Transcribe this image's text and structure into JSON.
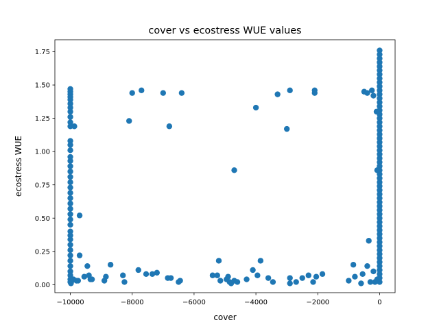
{
  "chart_data": {
    "type": "scatter",
    "title": "cover vs ecostress WUE values",
    "xlabel": "cover",
    "ylabel": "ecostress WUE",
    "xlim": [
      -10500,
      500
    ],
    "ylim": [
      -0.06,
      1.84
    ],
    "xticks": [
      -10000,
      -8000,
      -6000,
      -4000,
      -2000,
      0
    ],
    "xtick_labels": [
      "−10000",
      "−8000",
      "−6000",
      "−4000",
      "−2000",
      "0"
    ],
    "yticks": [
      0.0,
      0.25,
      0.5,
      0.75,
      1.0,
      1.25,
      1.5,
      1.75
    ],
    "ytick_labels": [
      "0.00",
      "0.25",
      "0.50",
      "0.75",
      "1.00",
      "1.25",
      "1.50",
      "1.75"
    ],
    "grid": false,
    "marker_color": "#1f77b4",
    "series": [
      {
        "points": [
          [
            -10000,
            1.47
          ],
          [
            -10000,
            1.45
          ],
          [
            -10000,
            1.43
          ],
          [
            -10000,
            1.41
          ],
          [
            -10000,
            1.39
          ],
          [
            -10000,
            1.36
          ],
          [
            -10000,
            1.33
          ],
          [
            -10000,
            1.3
          ],
          [
            -10000,
            1.26
          ],
          [
            -10000,
            1.22
          ],
          [
            -10000,
            1.19
          ],
          [
            -10000,
            1.08
          ],
          [
            -10000,
            1.05
          ],
          [
            -10000,
            1.01
          ],
          [
            -10000,
            0.96
          ],
          [
            -10000,
            0.93
          ],
          [
            -10000,
            0.89
          ],
          [
            -10000,
            0.85
          ],
          [
            -10000,
            0.81
          ],
          [
            -10000,
            0.77
          ],
          [
            -10000,
            0.73
          ],
          [
            -10000,
            0.69
          ],
          [
            -10000,
            0.65
          ],
          [
            -10000,
            0.61
          ],
          [
            -10000,
            0.57
          ],
          [
            -10000,
            0.53
          ],
          [
            -10000,
            0.49
          ],
          [
            -10000,
            0.45
          ],
          [
            -10000,
            0.4
          ],
          [
            -10000,
            0.37
          ],
          [
            -10000,
            0.34
          ],
          [
            -10000,
            0.3
          ],
          [
            -10000,
            0.26
          ],
          [
            -10000,
            0.22
          ],
          [
            -10000,
            0.18
          ],
          [
            -10000,
            0.14
          ],
          [
            -10000,
            0.1
          ],
          [
            -10000,
            0.07
          ],
          [
            -10000,
            0.04
          ],
          [
            -10000,
            0.02
          ],
          [
            -9980,
            0.01
          ],
          [
            -9950,
            0.03
          ],
          [
            -9900,
            0.04
          ],
          [
            -9870,
            1.19
          ],
          [
            -9800,
            0.03
          ],
          [
            -9750,
            0.03
          ],
          [
            -9700,
            0.52
          ],
          [
            -9700,
            0.22
          ],
          [
            -9550,
            0.06
          ],
          [
            -9450,
            0.14
          ],
          [
            -9400,
            0.07
          ],
          [
            -9350,
            0.04
          ],
          [
            -9300,
            0.04
          ],
          [
            -8900,
            0.03
          ],
          [
            -8850,
            0.06
          ],
          [
            -8700,
            0.15
          ],
          [
            -8300,
            0.07
          ],
          [
            -8250,
            0.02
          ],
          [
            -8100,
            1.23
          ],
          [
            -8000,
            1.44
          ],
          [
            -7800,
            0.11
          ],
          [
            -7700,
            1.46
          ],
          [
            -7550,
            0.08
          ],
          [
            -7350,
            0.08
          ],
          [
            -7200,
            0.09
          ],
          [
            -7000,
            1.44
          ],
          [
            -6850,
            0.05
          ],
          [
            -6800,
            1.19
          ],
          [
            -6750,
            0.05
          ],
          [
            -6500,
            0.02
          ],
          [
            -6450,
            0.03
          ],
          [
            -6400,
            1.44
          ],
          [
            -5400,
            0.07
          ],
          [
            -5250,
            0.07
          ],
          [
            -5200,
            0.18
          ],
          [
            -5150,
            0.03
          ],
          [
            -4950,
            0.04
          ],
          [
            -4900,
            0.06
          ],
          [
            -4850,
            0.02
          ],
          [
            -4800,
            0.01
          ],
          [
            -4700,
            0.86
          ],
          [
            -4700,
            0.03
          ],
          [
            -4600,
            0.02
          ],
          [
            -4300,
            0.04
          ],
          [
            -4100,
            0.11
          ],
          [
            -4000,
            1.33
          ],
          [
            -3950,
            0.07
          ],
          [
            -3850,
            0.18
          ],
          [
            -3600,
            0.05
          ],
          [
            -3450,
            0.02
          ],
          [
            -3300,
            1.43
          ],
          [
            -3000,
            1.17
          ],
          [
            -2900,
            1.46
          ],
          [
            -2900,
            0.05
          ],
          [
            -2900,
            0.01
          ],
          [
            -2700,
            0.02
          ],
          [
            -2500,
            0.05
          ],
          [
            -2300,
            0.07
          ],
          [
            -2150,
            0.02
          ],
          [
            -2100,
            1.46
          ],
          [
            -2100,
            1.44
          ],
          [
            -2050,
            0.06
          ],
          [
            -1850,
            0.08
          ],
          [
            -1000,
            0.03
          ],
          [
            -850,
            0.15
          ],
          [
            -800,
            0.06
          ],
          [
            -600,
            0.01
          ],
          [
            -550,
            0.08
          ],
          [
            -500,
            1.45
          ],
          [
            -400,
            1.44
          ],
          [
            -400,
            0.14
          ],
          [
            -350,
            0.33
          ],
          [
            -300,
            0.02
          ],
          [
            -250,
            1.46
          ],
          [
            -200,
            1.42
          ],
          [
            -200,
            0.1
          ],
          [
            -150,
            0.02
          ],
          [
            -100,
            1.3
          ],
          [
            -80,
            0.86
          ],
          [
            -80,
            0.04
          ],
          [
            0,
            1.76
          ],
          [
            0,
            1.73
          ],
          [
            0,
            1.7
          ],
          [
            0,
            1.67
          ],
          [
            0,
            1.64
          ],
          [
            0,
            1.61
          ],
          [
            0,
            1.58
          ],
          [
            0,
            1.55
          ],
          [
            0,
            1.52
          ],
          [
            0,
            1.49
          ],
          [
            0,
            1.46
          ],
          [
            0,
            1.43
          ],
          [
            0,
            1.4
          ],
          [
            0,
            1.37
          ],
          [
            0,
            1.34
          ],
          [
            0,
            1.31
          ],
          [
            0,
            1.28
          ],
          [
            0,
            1.25
          ],
          [
            0,
            1.22
          ],
          [
            0,
            1.19
          ],
          [
            0,
            1.16
          ],
          [
            0,
            1.13
          ],
          [
            0,
            1.1
          ],
          [
            0,
            1.07
          ],
          [
            0,
            1.04
          ],
          [
            0,
            1.01
          ],
          [
            0,
            0.98
          ],
          [
            0,
            0.95
          ],
          [
            0,
            0.92
          ],
          [
            0,
            0.89
          ],
          [
            0,
            0.86
          ],
          [
            0,
            0.83
          ],
          [
            0,
            0.8
          ],
          [
            0,
            0.77
          ],
          [
            0,
            0.74
          ],
          [
            0,
            0.71
          ],
          [
            0,
            0.68
          ],
          [
            0,
            0.65
          ],
          [
            0,
            0.62
          ],
          [
            0,
            0.59
          ],
          [
            0,
            0.56
          ],
          [
            0,
            0.53
          ],
          [
            0,
            0.5
          ],
          [
            0,
            0.47
          ],
          [
            0,
            0.44
          ],
          [
            0,
            0.41
          ],
          [
            0,
            0.38
          ],
          [
            0,
            0.35
          ],
          [
            0,
            0.32
          ],
          [
            0,
            0.29
          ],
          [
            0,
            0.26
          ],
          [
            0,
            0.23
          ],
          [
            0,
            0.2
          ],
          [
            0,
            0.17
          ],
          [
            0,
            0.14
          ],
          [
            0,
            0.11
          ],
          [
            0,
            0.08
          ],
          [
            0,
            0.05
          ],
          [
            0,
            0.02
          ]
        ]
      }
    ]
  }
}
